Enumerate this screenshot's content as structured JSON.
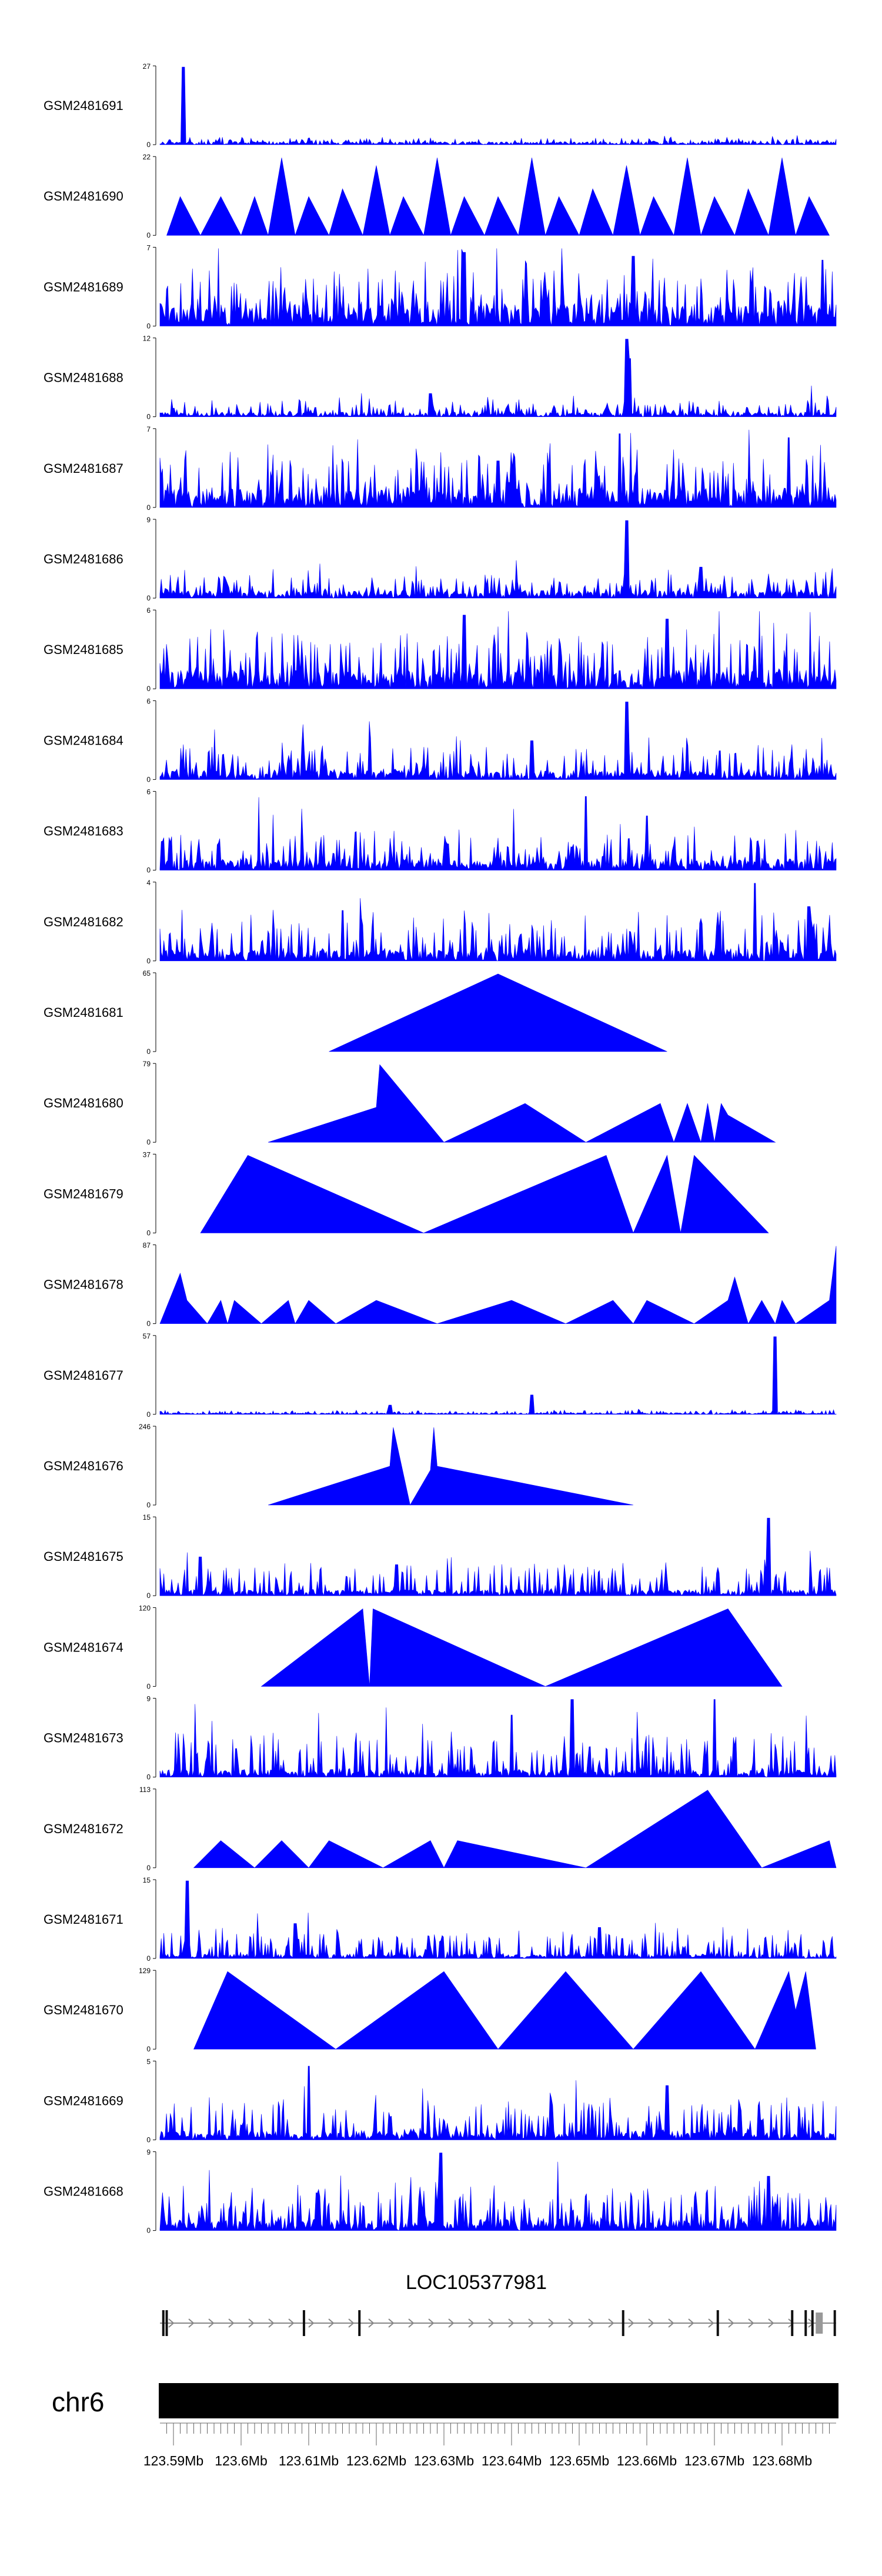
{
  "chart_data": {
    "type": "area",
    "title": "",
    "xlabel": "",
    "ylabel": "",
    "fill_color": "#0000ff",
    "xlim_mb": [
      123.588,
      123.688
    ],
    "tracks": [
      {
        "name": "GSM2481691",
        "ymax": "27",
        "ymin": "0",
        "ylim": [
          0,
          27
        ],
        "pattern": "spiky",
        "base": 0.04,
        "noise": 0.06,
        "peaks": [
          [
            0.035,
            1.0
          ]
        ]
      },
      {
        "name": "GSM2481690",
        "ymax": "22",
        "ymin": "0",
        "ylim": [
          0,
          22
        ],
        "pattern": "triangles",
        "segments": [
          [
            0.01,
            0.0
          ],
          [
            0.03,
            0.5
          ],
          [
            0.06,
            0.0
          ],
          [
            0.09,
            0.5
          ],
          [
            0.12,
            0.0
          ],
          [
            0.14,
            0.5
          ],
          [
            0.16,
            0.0
          ],
          [
            0.18,
            1.0
          ],
          [
            0.2,
            0.0
          ],
          [
            0.22,
            0.5
          ],
          [
            0.25,
            0.0
          ],
          [
            0.27,
            0.6
          ],
          [
            0.3,
            0.0
          ],
          [
            0.32,
            0.9
          ],
          [
            0.34,
            0.0
          ],
          [
            0.36,
            0.5
          ],
          [
            0.39,
            0.0
          ],
          [
            0.41,
            1.0
          ],
          [
            0.43,
            0.0
          ],
          [
            0.45,
            0.5
          ],
          [
            0.48,
            0.0
          ],
          [
            0.5,
            0.5
          ],
          [
            0.53,
            0.0
          ],
          [
            0.55,
            1.0
          ],
          [
            0.57,
            0.0
          ],
          [
            0.59,
            0.5
          ],
          [
            0.62,
            0.0
          ],
          [
            0.64,
            0.6
          ],
          [
            0.67,
            0.0
          ],
          [
            0.69,
            0.9
          ],
          [
            0.71,
            0.0
          ],
          [
            0.73,
            0.5
          ],
          [
            0.76,
            0.0
          ],
          [
            0.78,
            1.0
          ],
          [
            0.8,
            0.0
          ],
          [
            0.82,
            0.5
          ],
          [
            0.85,
            0.0
          ],
          [
            0.87,
            0.6
          ],
          [
            0.9,
            0.0
          ],
          [
            0.92,
            1.0
          ],
          [
            0.94,
            0.0
          ],
          [
            0.96,
            0.5
          ],
          [
            0.99,
            0.0
          ]
        ]
      },
      {
        "name": "GSM2481689",
        "ymax": "7",
        "ymin": "0",
        "ylim": [
          0,
          7
        ],
        "pattern": "spiky",
        "base": 0.3,
        "noise": 0.55,
        "peaks": [
          [
            0.45,
            0.95
          ],
          [
            0.7,
            0.9
          ],
          [
            0.98,
            0.85
          ]
        ]
      },
      {
        "name": "GSM2481688",
        "ymax": "12",
        "ymin": "0",
        "ylim": [
          0,
          12
        ],
        "pattern": "spiky",
        "base": 0.06,
        "noise": 0.18,
        "peaks": [
          [
            0.69,
            1.0
          ],
          [
            0.695,
            0.75
          ],
          [
            0.4,
            0.3
          ]
        ]
      },
      {
        "name": "GSM2481687",
        "ymax": "7",
        "ymin": "0",
        "ylim": [
          0,
          7
        ],
        "pattern": "spiky",
        "base": 0.25,
        "noise": 0.55,
        "peaks": [
          [
            0.68,
            0.95
          ],
          [
            0.93,
            0.9
          ],
          [
            0.5,
            0.6
          ]
        ]
      },
      {
        "name": "GSM2481686",
        "ymax": "9",
        "ymin": "0",
        "ylim": [
          0,
          9
        ],
        "pattern": "spiky",
        "base": 0.1,
        "noise": 0.25,
        "peaks": [
          [
            0.69,
            1.0
          ],
          [
            0.8,
            0.4
          ]
        ]
      },
      {
        "name": "GSM2481685",
        "ymax": "6",
        "ymin": "0",
        "ylim": [
          0,
          6
        ],
        "pattern": "spiky",
        "base": 0.25,
        "noise": 0.6,
        "peaks": [
          [
            0.45,
            0.95
          ],
          [
            0.75,
            0.9
          ]
        ]
      },
      {
        "name": "GSM2481684",
        "ymax": "6",
        "ymin": "0",
        "ylim": [
          0,
          6
        ],
        "pattern": "spiky",
        "base": 0.12,
        "noise": 0.35,
        "peaks": [
          [
            0.69,
            1.0
          ],
          [
            0.55,
            0.5
          ]
        ]
      },
      {
        "name": "GSM2481683",
        "ymax": "6",
        "ymin": "0",
        "ylim": [
          0,
          6
        ],
        "pattern": "spiky",
        "base": 0.15,
        "noise": 0.4,
        "peaks": [
          [
            0.63,
            0.95
          ],
          [
            0.72,
            0.7
          ]
        ]
      },
      {
        "name": "GSM2481682",
        "ymax": "4",
        "ymin": "0",
        "ylim": [
          0,
          4
        ],
        "pattern": "spiky",
        "base": 0.15,
        "noise": 0.5,
        "peaks": [
          [
            0.27,
            0.65
          ],
          [
            0.88,
            1.0
          ],
          [
            0.96,
            0.7
          ]
        ]
      },
      {
        "name": "GSM2481681",
        "ymax": "65",
        "ymin": "0",
        "ylim": [
          0,
          65
        ],
        "pattern": "triangles",
        "segments": [
          [
            0.25,
            0.0
          ],
          [
            0.5,
            1.0
          ],
          [
            0.75,
            0.0
          ]
        ]
      },
      {
        "name": "GSM2481680",
        "ymax": "79",
        "ymin": "0",
        "ylim": [
          0,
          79
        ],
        "pattern": "triangles",
        "segments": [
          [
            0.16,
            0.0
          ],
          [
            0.32,
            0.45
          ],
          [
            0.325,
            1.0
          ],
          [
            0.42,
            0.0
          ],
          [
            0.54,
            0.5
          ],
          [
            0.63,
            0.0
          ],
          [
            0.74,
            0.5
          ],
          [
            0.76,
            0.0
          ],
          [
            0.78,
            0.5
          ],
          [
            0.8,
            0.0
          ],
          [
            0.81,
            0.5
          ],
          [
            0.82,
            0.0
          ],
          [
            0.83,
            0.5
          ],
          [
            0.84,
            0.35
          ],
          [
            0.91,
            0.0
          ]
        ]
      },
      {
        "name": "GSM2481679",
        "ymax": "37",
        "ymin": "0",
        "ylim": [
          0,
          37
        ],
        "pattern": "triangles",
        "segments": [
          [
            0.06,
            0.0
          ],
          [
            0.13,
            1.0
          ],
          [
            0.39,
            0.0
          ],
          [
            0.66,
            1.0
          ],
          [
            0.7,
            0.0
          ],
          [
            0.75,
            1.0
          ],
          [
            0.77,
            0.0
          ],
          [
            0.79,
            1.0
          ],
          [
            0.9,
            0.0
          ]
        ]
      },
      {
        "name": "GSM2481678",
        "ymax": "87",
        "ymin": "0",
        "ylim": [
          0,
          87
        ],
        "pattern": "triangles",
        "segments": [
          [
            0.0,
            0.0
          ],
          [
            0.03,
            0.65
          ],
          [
            0.04,
            0.3
          ],
          [
            0.07,
            0.0
          ],
          [
            0.09,
            0.3
          ],
          [
            0.1,
            0.0
          ],
          [
            0.11,
            0.3
          ],
          [
            0.15,
            0.0
          ],
          [
            0.19,
            0.3
          ],
          [
            0.2,
            0.0
          ],
          [
            0.22,
            0.3
          ],
          [
            0.26,
            0.0
          ],
          [
            0.32,
            0.3
          ],
          [
            0.41,
            0.0
          ],
          [
            0.52,
            0.3
          ],
          [
            0.6,
            0.0
          ],
          [
            0.67,
            0.3
          ],
          [
            0.7,
            0.0
          ],
          [
            0.72,
            0.3
          ],
          [
            0.79,
            0.0
          ],
          [
            0.84,
            0.3
          ],
          [
            0.85,
            0.6
          ],
          [
            0.87,
            0.0
          ],
          [
            0.89,
            0.3
          ],
          [
            0.91,
            0.0
          ],
          [
            0.92,
            0.3
          ],
          [
            0.94,
            0.0
          ],
          [
            0.99,
            0.3
          ],
          [
            1.0,
            1.0
          ],
          [
            1.0,
            0.0
          ]
        ]
      },
      {
        "name": "GSM2481677",
        "ymax": "57",
        "ymin": "0",
        "ylim": [
          0,
          57
        ],
        "pattern": "spiky",
        "base": 0.02,
        "noise": 0.04,
        "peaks": [
          [
            0.91,
            1.0
          ],
          [
            0.55,
            0.25
          ],
          [
            0.34,
            0.12
          ]
        ]
      },
      {
        "name": "GSM2481676",
        "ymax": "246",
        "ymin": "0",
        "ylim": [
          0,
          246
        ],
        "pattern": "triangles",
        "segments": [
          [
            0.16,
            0.0
          ],
          [
            0.34,
            0.5
          ],
          [
            0.345,
            1.0
          ],
          [
            0.37,
            0.0
          ],
          [
            0.4,
            0.45
          ],
          [
            0.405,
            1.0
          ],
          [
            0.41,
            0.5
          ],
          [
            0.7,
            0.0
          ]
        ]
      },
      {
        "name": "GSM2481675",
        "ymax": "15",
        "ymin": "0",
        "ylim": [
          0,
          15
        ],
        "pattern": "spiky",
        "base": 0.08,
        "noise": 0.35,
        "peaks": [
          [
            0.9,
            1.0
          ],
          [
            0.06,
            0.5
          ],
          [
            0.35,
            0.4
          ]
        ]
      },
      {
        "name": "GSM2481674",
        "ymax": "120",
        "ymin": "0",
        "ylim": [
          0,
          120
        ],
        "pattern": "triangles",
        "segments": [
          [
            0.15,
            0.0
          ],
          [
            0.3,
            1.0
          ],
          [
            0.31,
            0.0
          ],
          [
            0.315,
            1.0
          ],
          [
            0.57,
            0.0
          ],
          [
            0.84,
            1.0
          ],
          [
            0.92,
            0.0
          ]
        ]
      },
      {
        "name": "GSM2481673",
        "ymax": "9",
        "ymin": "0",
        "ylim": [
          0,
          9
        ],
        "pattern": "spiky",
        "base": 0.1,
        "noise": 0.5,
        "peaks": [
          [
            0.61,
            1.0
          ],
          [
            0.82,
            1.0
          ],
          [
            0.52,
            0.8
          ]
        ]
      },
      {
        "name": "GSM2481672",
        "ymax": "113",
        "ymin": "0",
        "ylim": [
          0,
          113
        ],
        "pattern": "triangles",
        "segments": [
          [
            0.05,
            0.0
          ],
          [
            0.09,
            0.35
          ],
          [
            0.14,
            0.0
          ],
          [
            0.18,
            0.35
          ],
          [
            0.22,
            0.0
          ],
          [
            0.25,
            0.35
          ],
          [
            0.33,
            0.0
          ],
          [
            0.4,
            0.35
          ],
          [
            0.42,
            0.0
          ],
          [
            0.44,
            0.35
          ],
          [
            0.63,
            0.0
          ],
          [
            0.81,
            1.0
          ],
          [
            0.89,
            0.0
          ],
          [
            0.99,
            0.35
          ],
          [
            1.0,
            0.0
          ]
        ]
      },
      {
        "name": "GSM2481671",
        "ymax": "15",
        "ymin": "0",
        "ylim": [
          0,
          15
        ],
        "pattern": "spiky",
        "base": 0.06,
        "noise": 0.3,
        "peaks": [
          [
            0.04,
            1.0
          ],
          [
            0.2,
            0.45
          ],
          [
            0.65,
            0.4
          ]
        ]
      },
      {
        "name": "GSM2481670",
        "ymax": "129",
        "ymin": "0",
        "ylim": [
          0,
          129
        ],
        "pattern": "triangles",
        "segments": [
          [
            0.05,
            0.0
          ],
          [
            0.1,
            1.0
          ],
          [
            0.26,
            0.0
          ],
          [
            0.42,
            1.0
          ],
          [
            0.5,
            0.0
          ],
          [
            0.6,
            1.0
          ],
          [
            0.7,
            0.0
          ],
          [
            0.8,
            1.0
          ],
          [
            0.88,
            0.0
          ],
          [
            0.93,
            1.0
          ],
          [
            0.94,
            0.5
          ],
          [
            0.955,
            1.0
          ],
          [
            0.97,
            0.0
          ]
        ]
      },
      {
        "name": "GSM2481669",
        "ymax": "5",
        "ymin": "0",
        "ylim": [
          0,
          5
        ],
        "pattern": "spiky",
        "base": 0.12,
        "noise": 0.45,
        "peaks": [
          [
            0.22,
            0.95
          ],
          [
            0.75,
            0.7
          ]
        ]
      },
      {
        "name": "GSM2481668",
        "ymax": "9",
        "ymin": "0",
        "ylim": [
          0,
          9
        ],
        "pattern": "spiky",
        "base": 0.15,
        "noise": 0.5,
        "peaks": [
          [
            0.415,
            1.0
          ],
          [
            0.9,
            0.7
          ]
        ]
      }
    ],
    "gene": {
      "name": "LOC105377981",
      "strand": "+",
      "exons_mb": [
        123.5885,
        123.589,
        123.6093,
        123.6175,
        123.6565,
        123.6705,
        123.6815,
        123.6835,
        123.6845,
        123.6878
      ]
    },
    "chromosome": "chr6",
    "axis_ticks": [
      "123.59Mb",
      "123.6Mb",
      "123.61Mb",
      "123.62Mb",
      "123.63Mb",
      "123.64Mb",
      "123.65Mb",
      "123.66Mb",
      "123.67Mb",
      "123.68Mb"
    ],
    "axis_tick_values_mb": [
      123.59,
      123.6,
      123.61,
      123.62,
      123.63,
      123.64,
      123.65,
      123.66,
      123.67,
      123.68
    ]
  }
}
